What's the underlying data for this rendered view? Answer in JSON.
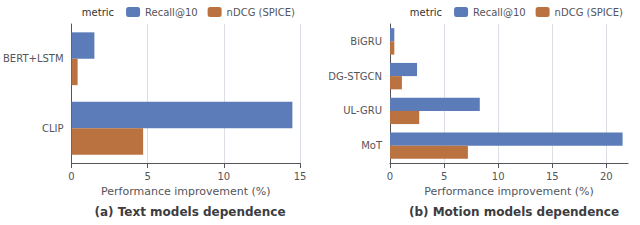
{
  "chart_data": [
    {
      "type": "bar",
      "orientation": "horizontal",
      "title": "(a) Text models dependence",
      "categories": [
        "BERT+LSTM",
        "CLIP"
      ],
      "series": [
        {
          "name": "Recall@10",
          "color": "#5b7cb8",
          "values": [
            1.5,
            14.5
          ]
        },
        {
          "name": "nDCG (SPICE)",
          "color": "#b97240",
          "values": [
            0.4,
            4.7
          ]
        }
      ],
      "xlabel": "Performance improvement (%)",
      "xlim": [
        0,
        15
      ],
      "xticks": [
        0,
        5,
        10,
        15
      ],
      "grid": true,
      "legend": "upper right",
      "legend_title": "metric"
    },
    {
      "type": "bar",
      "orientation": "horizontal",
      "title": "(b) Motion models dependence",
      "categories": [
        "BiGRU",
        "DG-STGCN",
        "UL-GRU",
        "MoT"
      ],
      "series": [
        {
          "name": "Recall@10",
          "color": "#5b7cb8",
          "values": [
            0.4,
            2.5,
            8.3,
            21.5
          ]
        },
        {
          "name": "nDCG (SPICE)",
          "color": "#b97240",
          "values": [
            0.4,
            1.1,
            2.7,
            7.2
          ]
        }
      ],
      "xlabel": "Performance improvement (%)",
      "xlim": [
        0,
        22
      ],
      "xticks": [
        0,
        5,
        10,
        15,
        20
      ],
      "grid": true,
      "legend": "upper right",
      "legend_title": "metric"
    }
  ]
}
